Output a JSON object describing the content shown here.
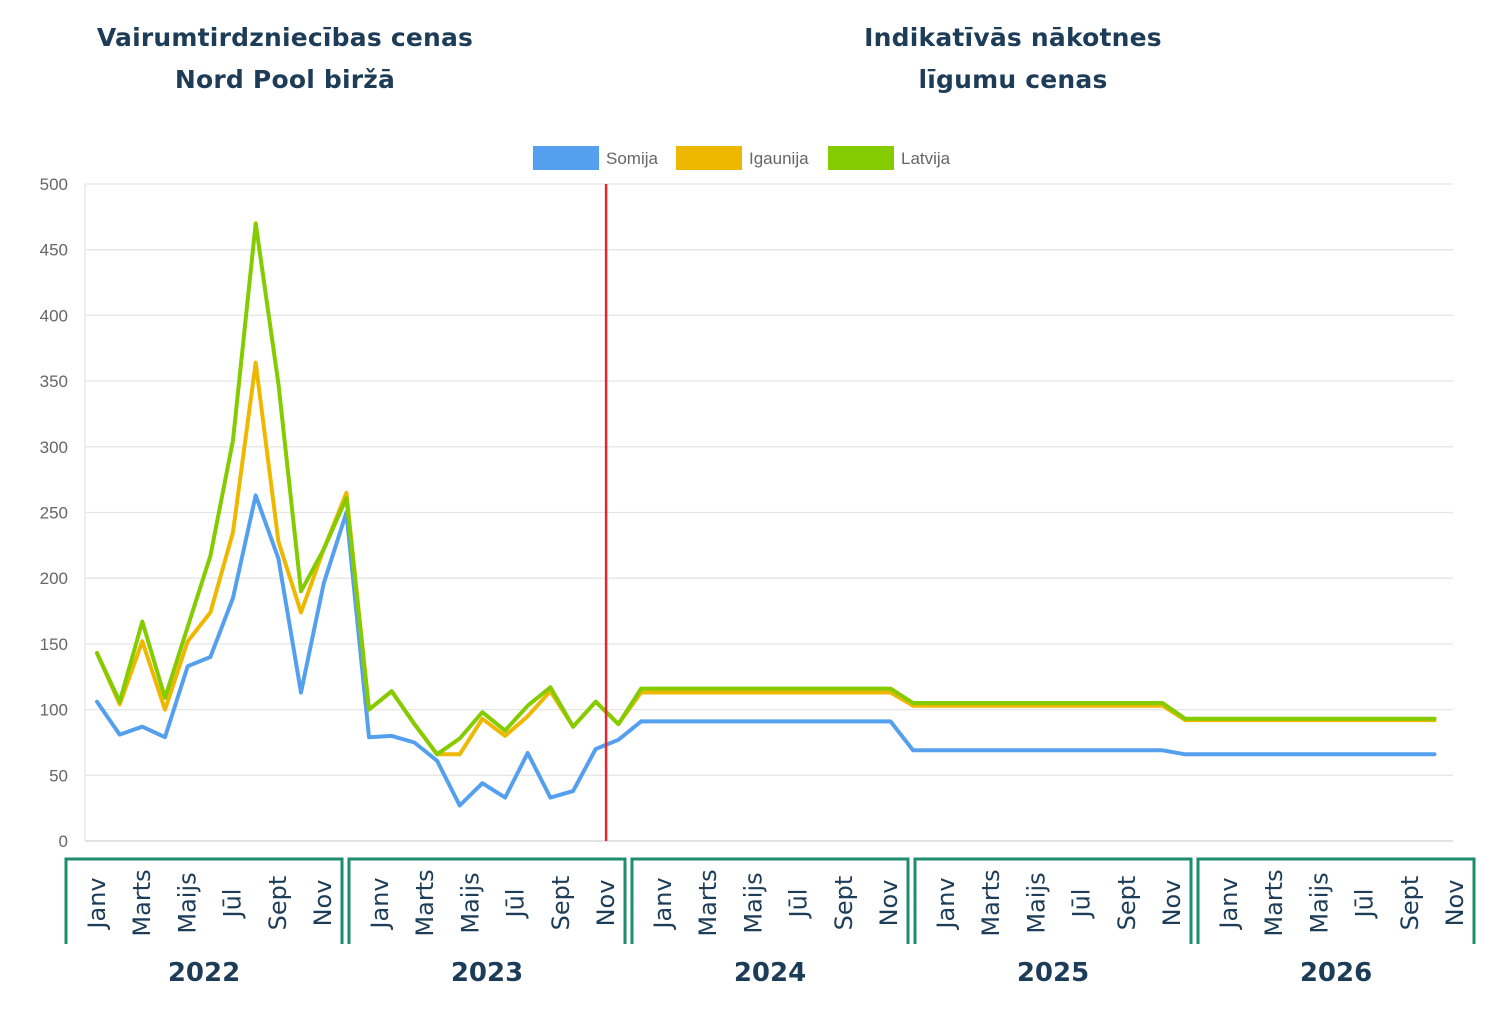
{
  "headings": {
    "left_line1": "Vairumtirdzniecības cenas",
    "left_line2": "Nord Pool biržā",
    "right_line1": "Indikatīvās nākotnes",
    "right_line2": "līgumu cenas"
  },
  "chart_data": {
    "type": "line",
    "ylim": [
      0,
      500
    ],
    "yticks": [
      0,
      50,
      100,
      150,
      200,
      250,
      300,
      350,
      400,
      450,
      500
    ],
    "grid": true,
    "legend_position": "top-center",
    "divider_after_index": 23,
    "divider_color": "#e8262a",
    "month_labels": [
      "Janv",
      "Marts",
      "Maijs",
      "Jūl",
      "Sept",
      "Nov"
    ],
    "years": [
      "2022",
      "2023",
      "2024",
      "2025",
      "2026"
    ],
    "group_border_color": "#1e8c6e",
    "series": [
      {
        "name": "Somija",
        "color": "#55a0ee",
        "values": [
          106,
          81,
          87,
          79,
          133,
          140,
          185,
          263,
          215,
          113,
          196,
          250,
          79,
          80,
          75,
          61,
          27,
          44,
          33,
          67,
          33,
          38,
          70,
          77,
          91,
          91,
          91,
          91,
          91,
          91,
          91,
          91,
          91,
          91,
          91,
          91,
          69,
          69,
          69,
          69,
          69,
          69,
          69,
          69,
          69,
          69,
          69,
          69,
          66,
          66,
          66,
          66,
          66,
          66,
          66,
          66,
          66,
          66,
          66,
          66
        ]
      },
      {
        "name": "Igaunija",
        "color": "#efb800",
        "values": [
          143,
          104,
          152,
          100,
          152,
          174,
          235,
          364,
          228,
          174,
          222,
          265,
          100,
          114,
          89,
          66,
          66,
          93,
          80,
          95,
          114,
          87,
          106,
          89,
          113,
          113,
          113,
          113,
          113,
          113,
          113,
          113,
          113,
          113,
          113,
          113,
          103,
          103,
          103,
          103,
          103,
          103,
          103,
          103,
          103,
          103,
          103,
          103,
          92,
          92,
          92,
          92,
          92,
          92,
          92,
          92,
          92,
          92,
          92,
          92
        ]
      },
      {
        "name": "Latvija",
        "color": "#84cb00",
        "values": [
          143,
          106,
          167,
          109,
          163,
          217,
          305,
          470,
          348,
          190,
          222,
          261,
          100,
          114,
          89,
          66,
          78,
          98,
          84,
          103,
          117,
          87,
          106,
          89,
          116,
          116,
          116,
          116,
          116,
          116,
          116,
          116,
          116,
          116,
          116,
          116,
          105,
          105,
          105,
          105,
          105,
          105,
          105,
          105,
          105,
          105,
          105,
          105,
          93,
          93,
          93,
          93,
          93,
          93,
          93,
          93,
          93,
          93,
          93,
          93
        ]
      }
    ]
  }
}
